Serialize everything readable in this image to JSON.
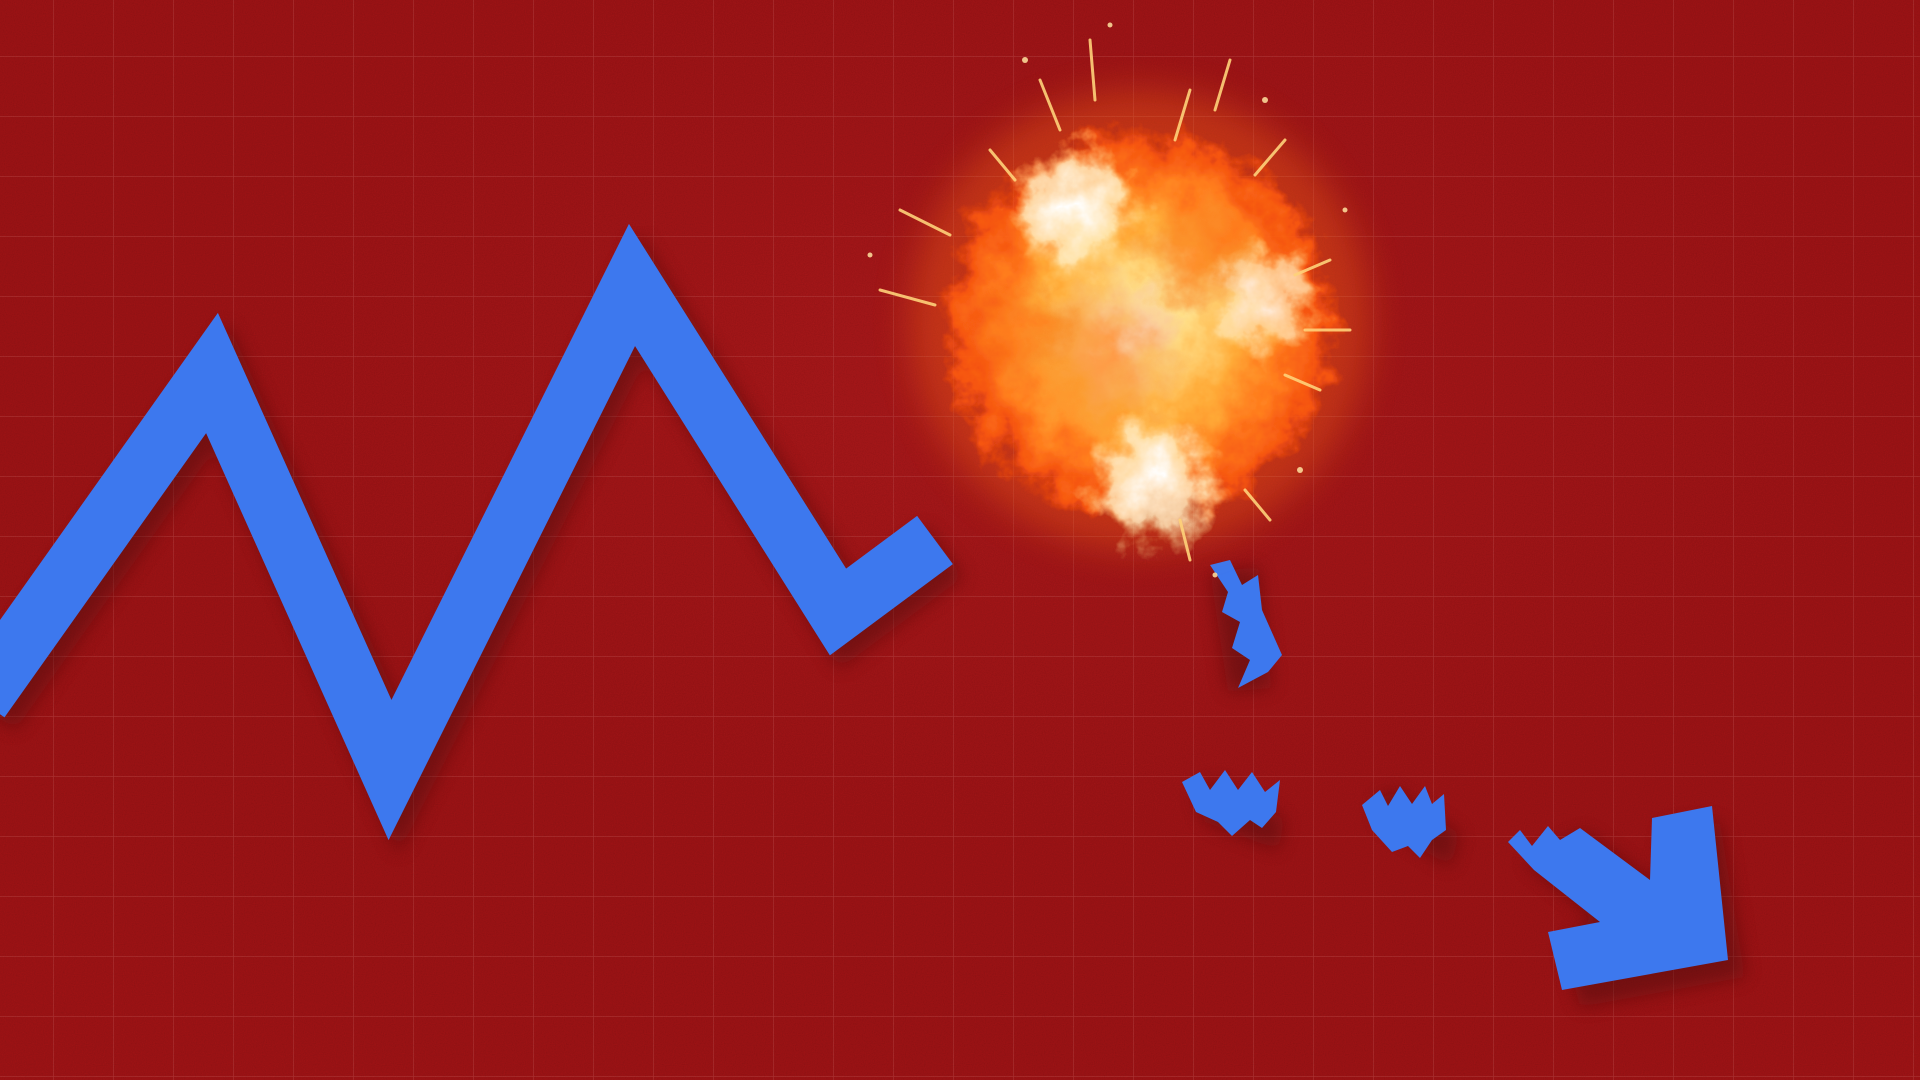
{
  "colors": {
    "background": "#a41416",
    "background_dark": "#8e0f12",
    "grid_line": "#c24a4a",
    "arrow_blue": "#3d78ee",
    "arrow_blue_shadow": "#5a0a0c",
    "explosion_core": "#fff4cf",
    "explosion_mid": "#ffb13a",
    "explosion_outer": "#ff6a12",
    "explosion_spark": "#ffd27a"
  },
  "scene": {
    "subject": "blue-zigzag-trend-arrow",
    "event": "explosion",
    "icons": [
      "trend-arrow-icon",
      "explosion-icon",
      "arrow-fragment-icon",
      "arrowhead-icon"
    ]
  }
}
